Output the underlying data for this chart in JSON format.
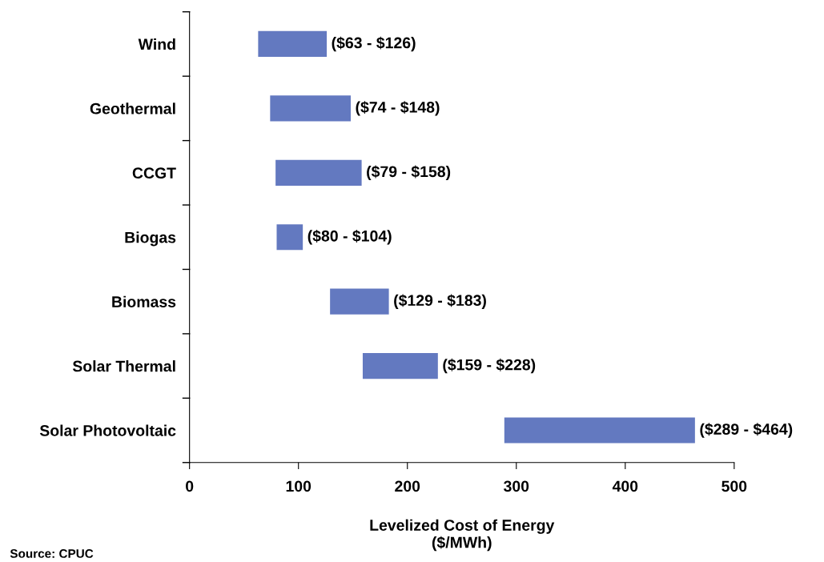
{
  "chart_data": {
    "type": "bar",
    "orientation": "horizontal",
    "categories": [
      "Wind",
      "Geothermal",
      "CCGT",
      "Biogas",
      "Biomass",
      "Solar Thermal",
      "Solar Photovoltaic"
    ],
    "base": [
      63,
      74,
      79,
      80,
      129,
      159,
      289
    ],
    "values": [
      63,
      74,
      79,
      24,
      54,
      69,
      175
    ],
    "value_labels": [
      "($63 - $126)",
      "($74 - $148)",
      "($79 - $158)",
      "($80 - $104)",
      "($129 - $183)",
      "($159 - $228)",
      "($289 - $464)"
    ],
    "color": "#6379c0",
    "xlim": [
      0,
      500
    ],
    "xticks": [
      0,
      100,
      200,
      300,
      400,
      500
    ],
    "xlabel": "Levelized Cost of Energy\n($/MWh)",
    "grid": false,
    "annotations": [
      "Source: CPUC"
    ]
  }
}
